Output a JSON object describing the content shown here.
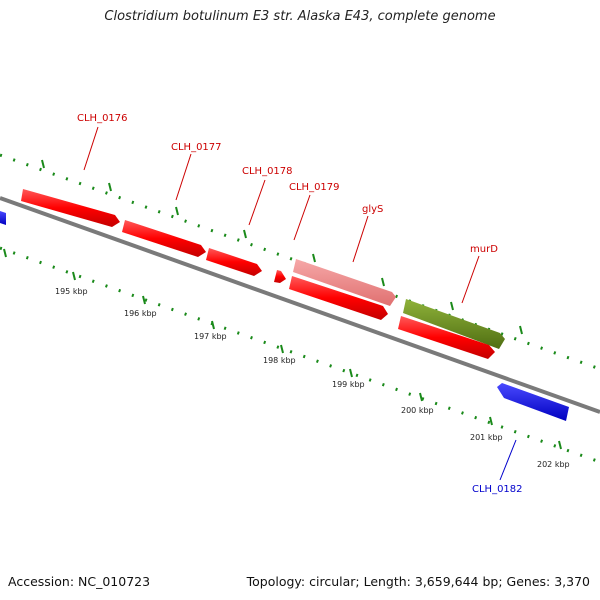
{
  "title": "Clostridium botulinum E3 str. Alaska E43, complete genome",
  "footer": {
    "accession": "Accession: NC_010723",
    "summary": "Topology: circular; Length: 3,659,644 bp; Genes: 3,370"
  },
  "colors": {
    "red_gene": "#ff0000",
    "pink_gene": "#f08080",
    "green_gene": "#6b8e23",
    "blue_gene": "#0000ff",
    "backbone": "#808080",
    "ticks": "#1a8a1a",
    "red_label": "#cc0000",
    "blue_label": "#0000cc"
  },
  "kbp_labels": [
    "195 kbp",
    "196 kbp",
    "197 kbp",
    "198 kbp",
    "199 kbp",
    "200 kbp",
    "201 kbp",
    "202 kbp"
  ],
  "gene_labels": [
    {
      "text": "CLH_0176",
      "color": "red"
    },
    {
      "text": "CLH_0177",
      "color": "red"
    },
    {
      "text": "CLH_0178",
      "color": "red"
    },
    {
      "text": "CLH_0179",
      "color": "red"
    },
    {
      "text": "glyS",
      "color": "red"
    },
    {
      "text": "murD",
      "color": "red"
    },
    {
      "text": "CLH_0182",
      "color": "blue"
    }
  ]
}
